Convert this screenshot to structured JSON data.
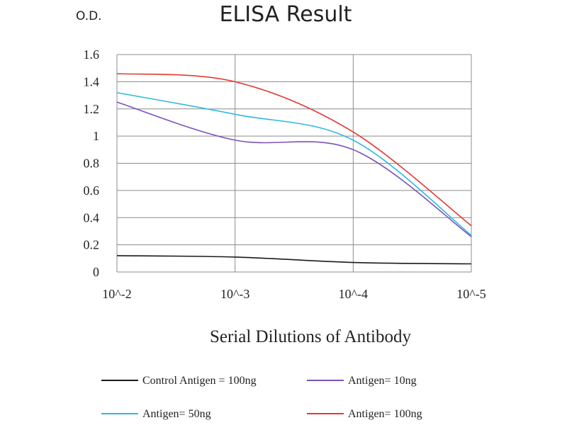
{
  "chart_data": {
    "type": "line",
    "title": "ELISA Result",
    "ylabel": "O.D.",
    "xlabel": "Serial Dilutions of Antibody",
    "categories": [
      "10^-2",
      "10^-3",
      "10^-4",
      "10^-5"
    ],
    "ylim": [
      0,
      1.6
    ],
    "yticks": [
      "0",
      "0.2",
      "0.4",
      "0.6",
      "0.8",
      "1",
      "1.2",
      "1.4",
      "1.6"
    ],
    "grid": true,
    "legend_position": "bottom",
    "series": [
      {
        "name": "Control Antigen = 100ng",
        "color": "#1a1a1a",
        "values": [
          0.12,
          0.11,
          0.07,
          0.06
        ]
      },
      {
        "name": "Antigen= 10ng",
        "color": "#7b52b8",
        "values": [
          1.25,
          0.97,
          0.9,
          0.26
        ]
      },
      {
        "name": "Antigen= 50ng",
        "color": "#2fb8e0",
        "values": [
          1.32,
          1.16,
          0.97,
          0.27
        ]
      },
      {
        "name": "Antigen= 100ng",
        "color": "#e23a36",
        "values": [
          1.46,
          1.4,
          1.03,
          0.34
        ]
      }
    ]
  }
}
